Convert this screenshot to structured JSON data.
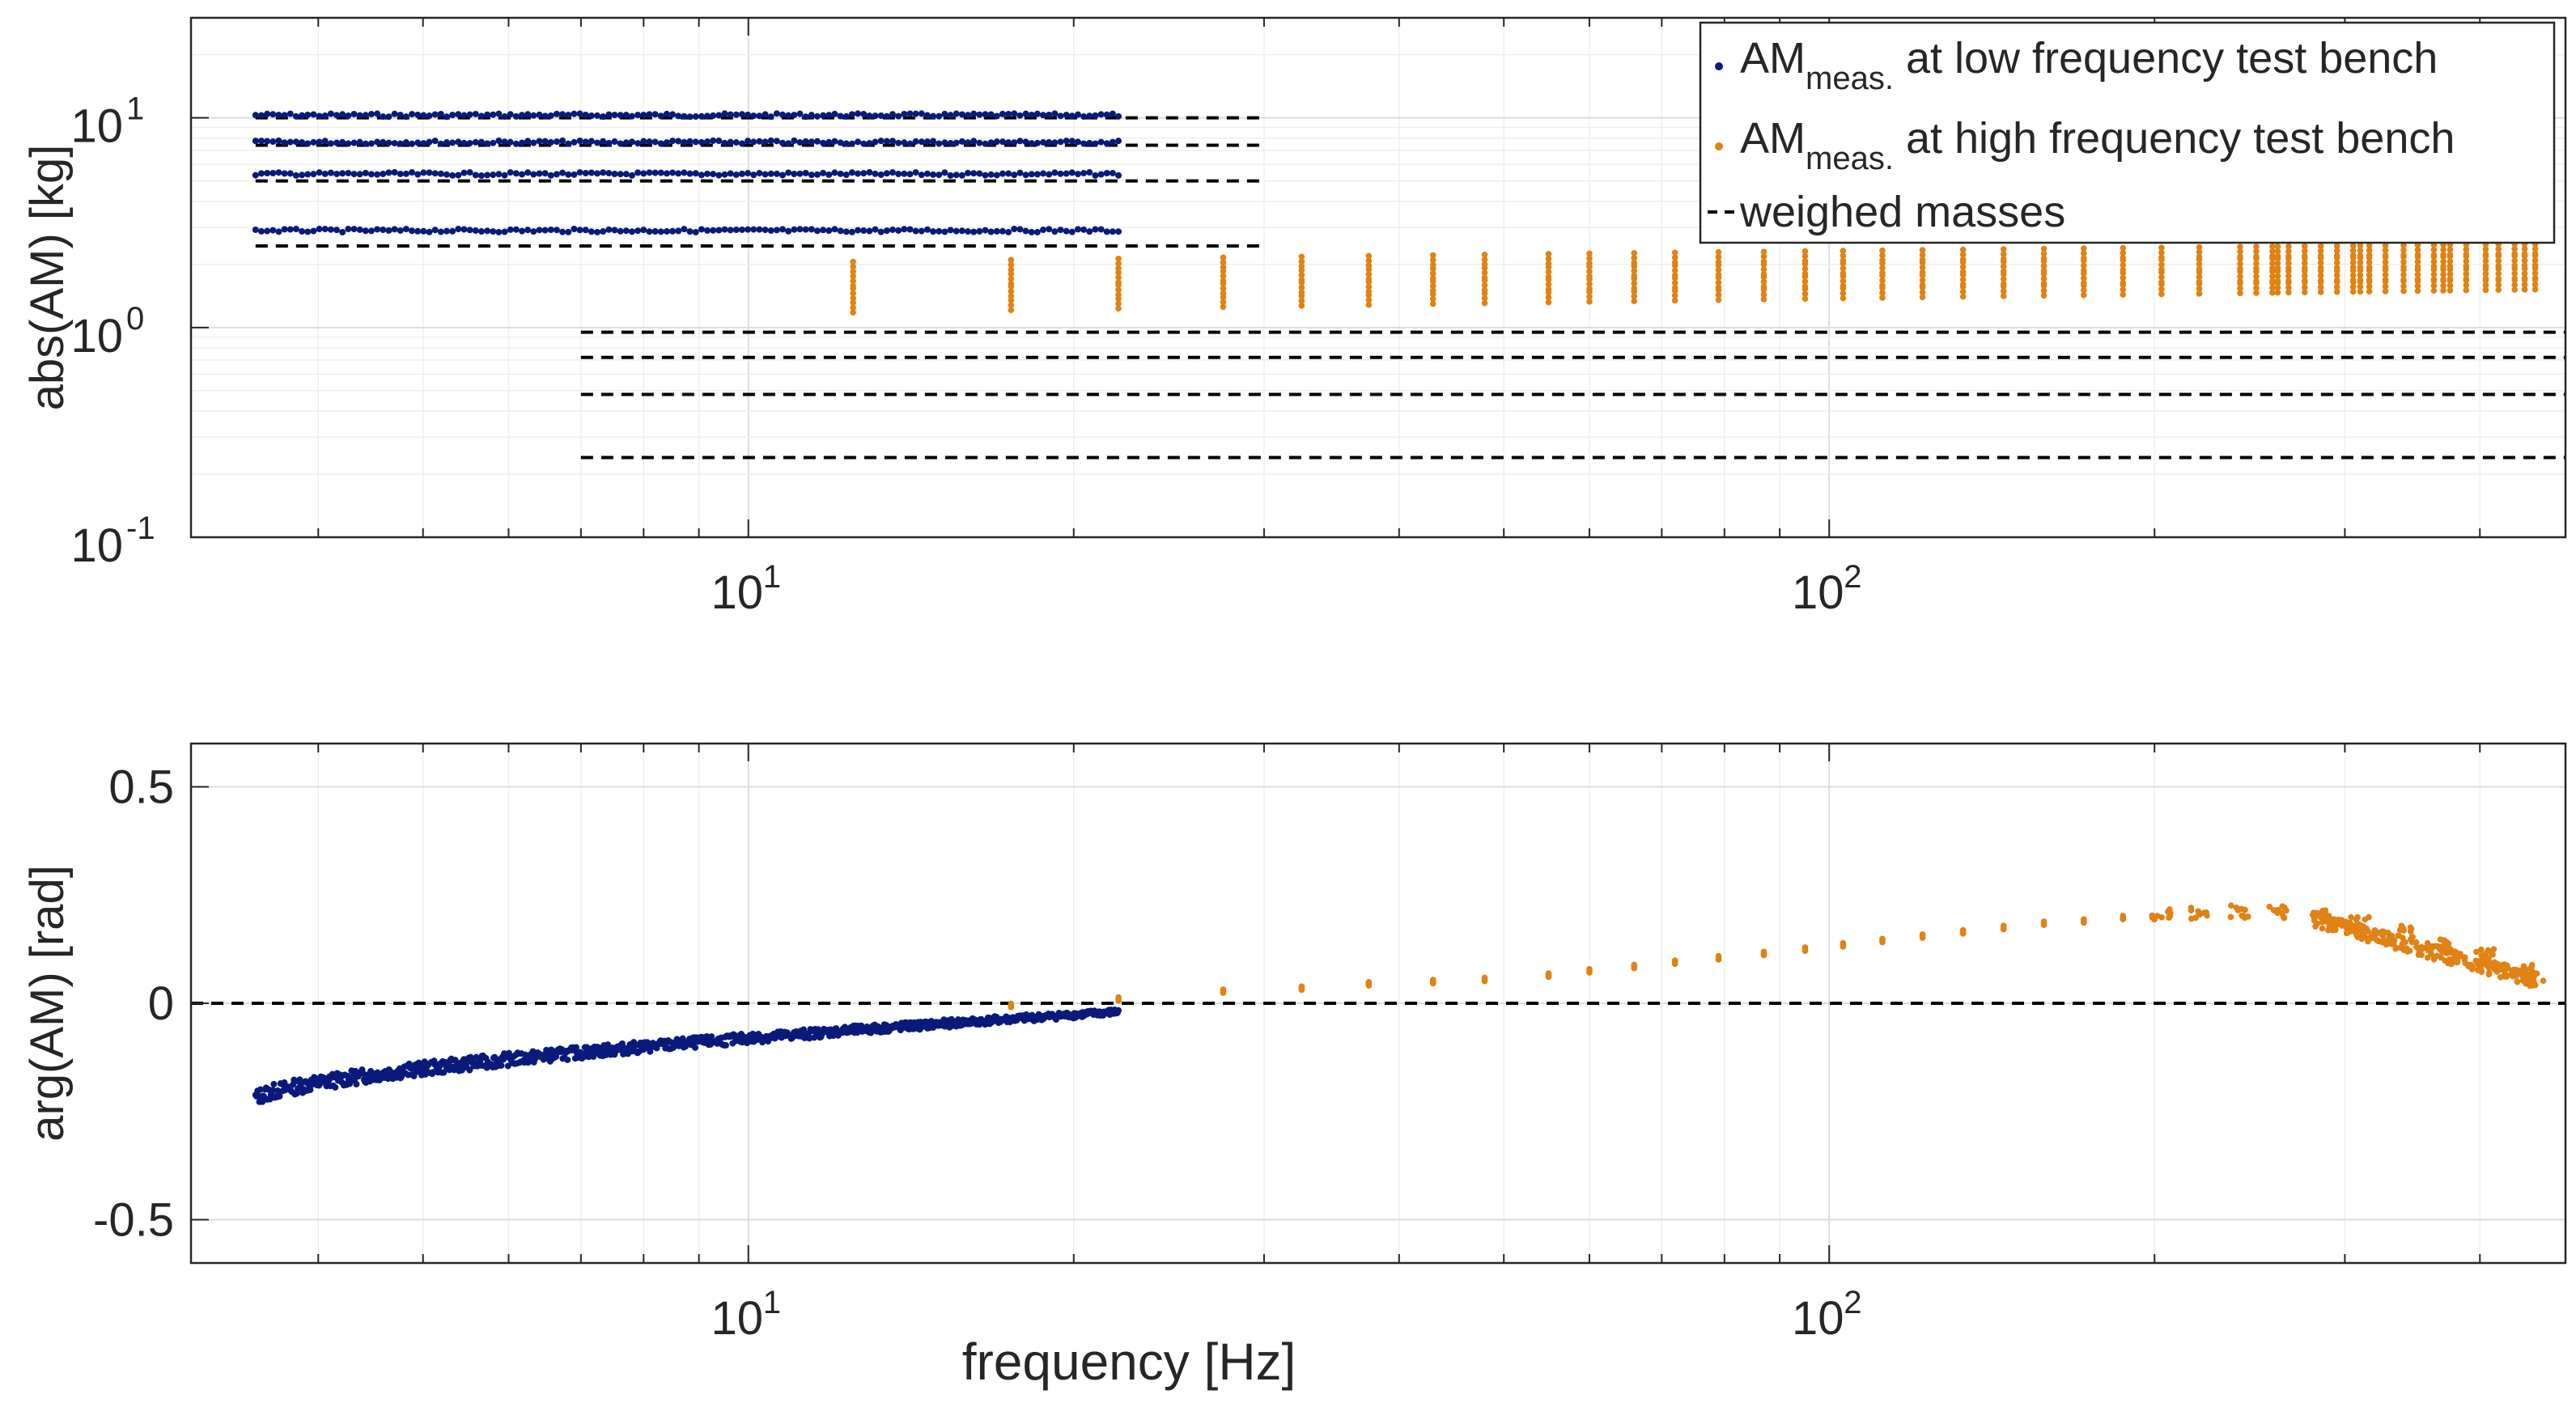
{
  "chart_data": [
    {
      "type": "scatter",
      "panel": "top",
      "title": "",
      "xlabel": "",
      "ylabel": "abs(AM) [kg]",
      "xscale": "log",
      "yscale": "log",
      "xlim": [
        3.05,
        480
      ],
      "ylim": [
        0.1,
        30
      ],
      "grid": true,
      "x_ticks": [
        {
          "base": "10",
          "exp": "1",
          "value": 10
        },
        {
          "base": "10",
          "exp": "2",
          "value": 100
        }
      ],
      "y_ticks": [
        {
          "base": "10",
          "exp": "1",
          "value": 10
        },
        {
          "base": "10",
          "exp": "0",
          "value": 1
        },
        {
          "base": "10",
          "exp": "-1",
          "value": 0.1
        }
      ],
      "legend": {
        "location": "top-right",
        "entries": [
          {
            "main": "AM",
            "sub": "meas.",
            "rest": " at low frequency test bench",
            "color": "#0a1a7a",
            "marker": "dot"
          },
          {
            "main": "AM",
            "sub": "meas.",
            "rest": " at high frequency test bench",
            "color": "#e08214",
            "marker": "dot"
          },
          {
            "main": "weighed masses",
            "sub": "",
            "rest": "",
            "color": "#000000",
            "marker": "dash"
          }
        ]
      },
      "series": [
        {
          "name": "AM meas. at low frequency test bench",
          "color": "#0a1a7a",
          "x_range": [
            3.5,
            22
          ],
          "y_levels": [
            10.3,
            7.65,
            5.4,
            2.9
          ]
        },
        {
          "name": "AM meas. at high frequency test bench",
          "color": "#e08214",
          "x_range": [
            12.5,
            450
          ],
          "y_levels_start": [
            1.85,
            1.58,
            1.38,
            1.18
          ],
          "y_levels_end": [
            2.25,
            1.98,
            1.72,
            1.52
          ]
        },
        {
          "name": "weighed masses (low bench)",
          "color": "#000000",
          "style": "dashed",
          "x_range": [
            3.5,
            30
          ],
          "y_values": [
            10.0,
            7.4,
            5.0,
            2.45
          ]
        },
        {
          "name": "weighed masses (high bench)",
          "color": "#000000",
          "style": "dashed",
          "x_range": [
            7,
            480
          ],
          "y_values": [
            0.95,
            0.72,
            0.48,
            0.24
          ]
        }
      ]
    },
    {
      "type": "scatter",
      "panel": "bottom",
      "title": "",
      "xlabel": "frequency [Hz]",
      "ylabel": "arg(AM) [rad]",
      "xscale": "log",
      "yscale": "linear",
      "xlim": [
        3.05,
        480
      ],
      "ylim": [
        -0.6,
        0.6
      ],
      "grid": true,
      "x_ticks": [
        {
          "base": "10",
          "exp": "1",
          "value": 10
        },
        {
          "base": "10",
          "exp": "2",
          "value": 100
        }
      ],
      "y_ticks": [
        {
          "label": "0.5",
          "value": 0.5
        },
        {
          "label": "0",
          "value": 0
        },
        {
          "label": "-0.5",
          "value": -0.5
        }
      ],
      "series": [
        {
          "name": "AM meas. at low frequency test bench",
          "color": "#0a1a7a",
          "x_range": [
            3.5,
            22
          ],
          "y_start": -0.22,
          "y_end": -0.02
        },
        {
          "name": "AM meas. at high frequency test bench",
          "color": "#e08214",
          "x": [
            17.5,
            22,
            27.5,
            32.5,
            37.5,
            43,
            48,
            55,
            60,
            66,
            72,
            79,
            87,
            95,
            103,
            112,
            122,
            133,
            145,
            158,
            172,
            187,
            203,
            220,
            240,
            260,
            285,
            310,
            340,
            370,
            405,
            440,
            450
          ],
          "y": [
            -0.005,
            0.01,
            0.028,
            0.035,
            0.045,
            0.05,
            0.055,
            0.065,
            0.075,
            0.085,
            0.095,
            0.105,
            0.115,
            0.125,
            0.135,
            0.145,
            0.155,
            0.165,
            0.175,
            0.185,
            0.19,
            0.198,
            0.205,
            0.21,
            0.212,
            0.21,
            0.2,
            0.185,
            0.165,
            0.14,
            0.11,
            0.075,
            0.055
          ]
        },
        {
          "name": "zero reference",
          "color": "#000000",
          "style": "dashed",
          "y_value": 0
        }
      ]
    }
  ]
}
